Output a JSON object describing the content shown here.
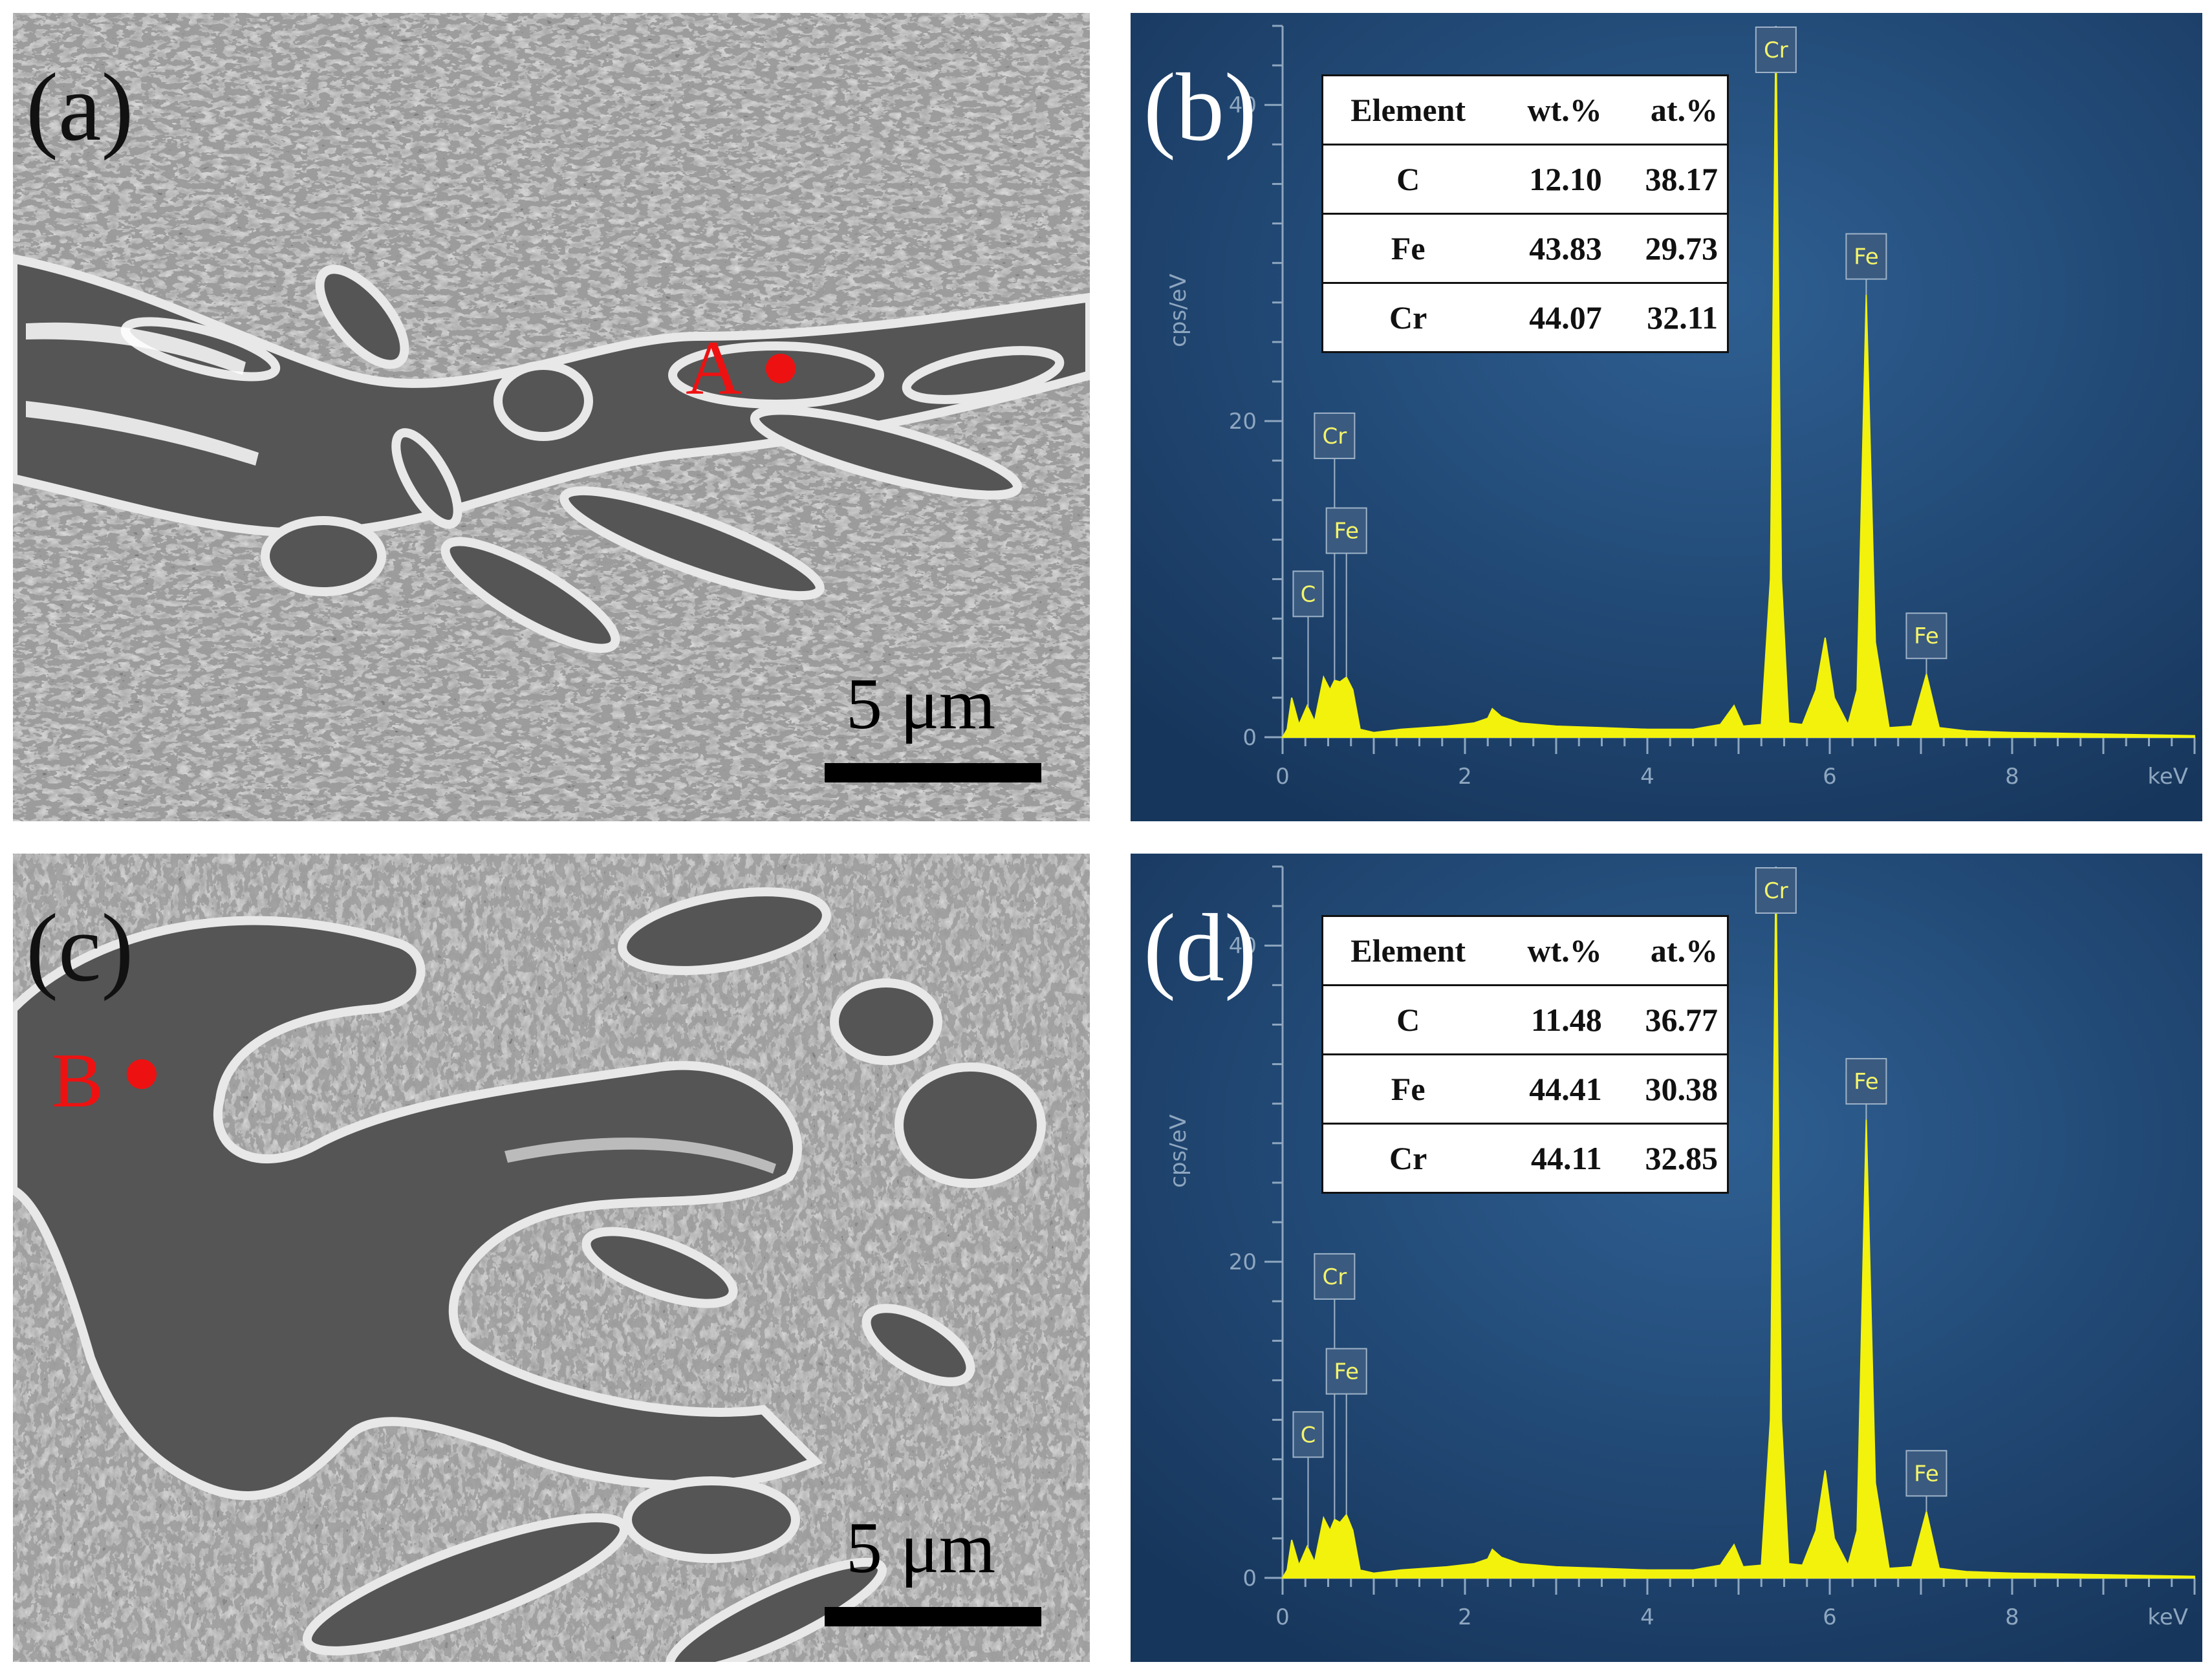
{
  "panels": {
    "a": {
      "label": "(a)",
      "marker": "A",
      "scale_bar": "5 μm"
    },
    "b": {
      "label": "(b)"
    },
    "c": {
      "label": "(c)",
      "marker": "B",
      "scale_bar": "5 μm"
    },
    "d": {
      "label": "(d)"
    }
  },
  "tables": {
    "b": {
      "headers": [
        "Element",
        "wt.%",
        "at.%"
      ],
      "rows": [
        [
          "C",
          "12.10",
          "38.17"
        ],
        [
          "Fe",
          "43.83",
          "29.73"
        ],
        [
          "Cr",
          "44.07",
          "32.11"
        ]
      ]
    },
    "d": {
      "headers": [
        "Element",
        "wt.%",
        "at.%"
      ],
      "rows": [
        [
          "C",
          "11.48",
          "36.77"
        ],
        [
          "Fe",
          "44.41",
          "30.38"
        ],
        [
          "Cr",
          "44.11",
          "32.85"
        ]
      ]
    }
  },
  "colors": {
    "marker": "#ee1111",
    "spectrum": "#f2f20d",
    "background_top": "#1b3d66",
    "background_glow": "#2e5f92"
  },
  "chart_data": [
    {
      "type": "area",
      "panel": "b",
      "ylabel": "cps/eV",
      "xunit": "keV",
      "xlim": [
        0,
        10
      ],
      "ylim": [
        0,
        45
      ],
      "xticks": [
        0,
        2,
        4,
        6,
        8
      ],
      "yticks": [
        0,
        20,
        40
      ],
      "x": [
        0.0,
        0.05,
        0.1,
        0.18,
        0.27,
        0.35,
        0.45,
        0.52,
        0.57,
        0.63,
        0.7,
        0.77,
        0.85,
        1.0,
        1.3,
        1.8,
        2.1,
        2.25,
        2.3,
        2.4,
        2.6,
        3.0,
        3.5,
        4.0,
        4.5,
        4.8,
        4.95,
        5.05,
        5.25,
        5.35,
        5.41,
        5.47,
        5.55,
        5.7,
        5.85,
        5.95,
        6.05,
        6.2,
        6.3,
        6.4,
        6.5,
        6.65,
        6.9,
        7.06,
        7.2,
        7.5,
        8.0,
        9.0,
        10.0
      ],
      "y": [
        0.0,
        0.5,
        2.5,
        0.8,
        2.0,
        1.0,
        3.8,
        3.0,
        3.6,
        3.5,
        3.8,
        3.0,
        0.5,
        0.3,
        0.5,
        0.7,
        0.9,
        1.2,
        1.8,
        1.3,
        0.9,
        0.7,
        0.6,
        0.5,
        0.5,
        0.8,
        2.0,
        0.7,
        0.8,
        10.0,
        46.0,
        10.0,
        0.9,
        0.8,
        3.0,
        6.3,
        2.5,
        0.8,
        3.0,
        28.0,
        6.0,
        0.6,
        0.7,
        4.0,
        0.6,
        0.4,
        0.3,
        0.2,
        0.1
      ],
      "peak_labels": [
        {
          "element": "C",
          "x": 0.28
        },
        {
          "element": "Cr",
          "x": 0.57
        },
        {
          "element": "Fe",
          "x": 0.7
        },
        {
          "element": "Cr",
          "x": 5.41
        },
        {
          "element": "Fe",
          "x": 6.4
        },
        {
          "element": "Fe",
          "x": 7.06
        }
      ]
    },
    {
      "type": "area",
      "panel": "d",
      "ylabel": "cps/eV",
      "xunit": "keV",
      "xlim": [
        0,
        10
      ],
      "ylim": [
        0,
        45
      ],
      "xticks": [
        0,
        2,
        4,
        6,
        8
      ],
      "yticks": [
        0,
        20,
        40
      ],
      "x": [
        0.0,
        0.05,
        0.1,
        0.18,
        0.27,
        0.35,
        0.45,
        0.52,
        0.57,
        0.63,
        0.7,
        0.77,
        0.85,
        1.0,
        1.3,
        1.8,
        2.1,
        2.25,
        2.3,
        2.4,
        2.6,
        3.0,
        3.5,
        4.0,
        4.5,
        4.8,
        4.95,
        5.05,
        5.25,
        5.35,
        5.41,
        5.47,
        5.55,
        5.7,
        5.85,
        5.95,
        6.05,
        6.2,
        6.3,
        6.4,
        6.5,
        6.65,
        6.9,
        7.06,
        7.2,
        7.5,
        8.0,
        9.0,
        10.0
      ],
      "y": [
        0.0,
        0.5,
        2.4,
        0.8,
        2.0,
        1.0,
        3.8,
        3.0,
        3.7,
        3.5,
        4.0,
        3.0,
        0.5,
        0.3,
        0.5,
        0.7,
        0.9,
        1.2,
        1.8,
        1.3,
        0.9,
        0.7,
        0.6,
        0.5,
        0.5,
        0.8,
        2.1,
        0.7,
        0.8,
        10.0,
        46.0,
        10.0,
        0.9,
        0.8,
        3.0,
        6.8,
        2.5,
        0.8,
        3.0,
        29.0,
        6.0,
        0.6,
        0.7,
        4.2,
        0.6,
        0.4,
        0.3,
        0.2,
        0.1
      ],
      "peak_labels": [
        {
          "element": "C",
          "x": 0.28
        },
        {
          "element": "Cr",
          "x": 0.57
        },
        {
          "element": "Fe",
          "x": 0.7
        },
        {
          "element": "Cr",
          "x": 5.41
        },
        {
          "element": "Fe",
          "x": 6.4
        },
        {
          "element": "Fe",
          "x": 7.06
        }
      ]
    }
  ]
}
